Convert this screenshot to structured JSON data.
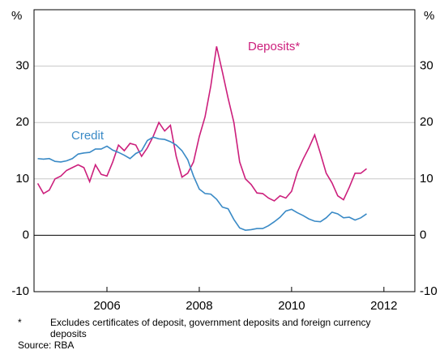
{
  "chart_data": {
    "type": "line",
    "y_unit": "%",
    "x": [
      2004.5,
      2004.625,
      2004.75,
      2004.875,
      2005,
      2005.125,
      2005.25,
      2005.375,
      2005.5,
      2005.625,
      2005.75,
      2005.875,
      2006,
      2006.125,
      2006.25,
      2006.375,
      2006.5,
      2006.625,
      2006.75,
      2006.875,
      2007,
      2007.125,
      2007.25,
      2007.375,
      2007.5,
      2007.625,
      2007.75,
      2007.875,
      2008,
      2008.125,
      2008.25,
      2008.375,
      2008.5,
      2008.625,
      2008.75,
      2008.875,
      2009,
      2009.125,
      2009.25,
      2009.375,
      2009.5,
      2009.625,
      2009.75,
      2009.875,
      2010,
      2010.125,
      2010.25,
      2010.375,
      2010.5,
      2010.625,
      2010.75,
      2010.875,
      2011,
      2011.125,
      2011.25,
      2011.375,
      2011.5,
      2011.625
    ],
    "series": [
      {
        "name": "Deposits*",
        "color": "#cc1f7c",
        "values": [
          9.2,
          7.4,
          8,
          10,
          10.5,
          11.5,
          12,
          12.5,
          12,
          9.5,
          12.5,
          10.8,
          10.5,
          13,
          16,
          15,
          16.3,
          16,
          14,
          15.5,
          17.5,
          20,
          18.5,
          19.5,
          14,
          10.3,
          11,
          13,
          17.5,
          21,
          26.5,
          33.5,
          29,
          24.3,
          20,
          13,
          10,
          9,
          7.5,
          7.4,
          6.6,
          6.1,
          7,
          6.6,
          7.8,
          11.2,
          13.5,
          15.5,
          17.8,
          14.5,
          11,
          9.3,
          7,
          6.3,
          8.5,
          11,
          11,
          11.8
        ]
      },
      {
        "name": "Credit",
        "color": "#3a8ac6",
        "values": [
          13.6,
          13.5,
          13.6,
          13.1,
          13,
          13.2,
          13.6,
          14.4,
          14.6,
          14.7,
          15.3,
          15.3,
          15.8,
          15.1,
          14.7,
          14.2,
          13.6,
          14.5,
          15,
          16.8,
          17.4,
          17.1,
          17,
          16.6,
          16,
          15,
          13.4,
          10.5,
          8.2,
          7.4,
          7.3,
          6.4,
          5,
          4.7,
          2.8,
          1.3,
          0.9,
          1,
          1.2,
          1.2,
          1.7,
          2.4,
          3.2,
          4.3,
          4.6,
          4,
          3.5,
          2.9,
          2.5,
          2.4,
          3.1,
          4.1,
          3.8,
          3.1,
          3.2,
          2.7,
          3.1,
          3.8
        ]
      }
    ],
    "xlim": [
      2004.42,
      2012.67
    ],
    "xticks": [
      2006,
      2008,
      2010,
      2012
    ],
    "ylim": [
      -10,
      40
    ],
    "yticks": [
      -10,
      0,
      10,
      20,
      30
    ],
    "grid": true,
    "footnote": {
      "marker": "*",
      "text": "Excludes certificates of deposit, government deposits and foreign currency deposits"
    },
    "source": "Source: RBA"
  }
}
